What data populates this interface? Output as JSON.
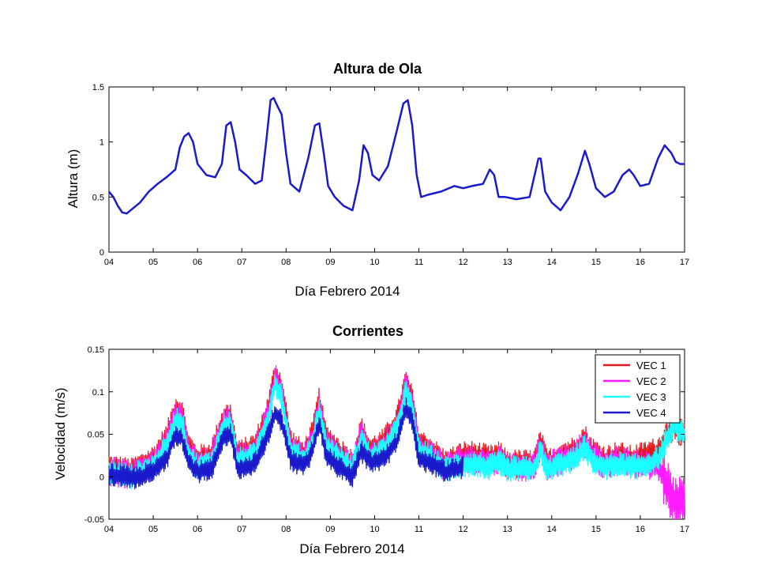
{
  "chart_data": [
    {
      "type": "line",
      "title": "Altura de Ola",
      "xlabel": "Día Febrero 2014",
      "ylabel": "Altura (m)",
      "xlim": [
        4,
        17
      ],
      "ylim": [
        0,
        1.5
      ],
      "xticks": [
        "04",
        "05",
        "06",
        "07",
        "08",
        "09",
        "10",
        "11",
        "12",
        "13",
        "14",
        "15",
        "16",
        "17"
      ],
      "yticks": [
        "0",
        "0.5",
        "1",
        "1.5"
      ],
      "grid": false,
      "color": "#1a1acc",
      "series": [
        {
          "x": [
            4.0,
            4.1,
            4.2,
            4.3,
            4.4,
            4.55,
            4.7,
            4.9,
            5.1,
            5.3,
            5.5,
            5.6,
            5.7,
            5.8,
            5.9,
            6.0,
            6.2,
            6.4,
            6.55,
            6.65,
            6.75,
            6.85,
            6.95,
            7.1,
            7.3,
            7.45,
            7.55,
            7.65,
            7.72,
            7.8,
            7.9,
            8.0,
            8.1,
            8.3,
            8.5,
            8.65,
            8.75,
            8.85,
            8.95,
            9.1,
            9.3,
            9.5,
            9.65,
            9.75,
            9.85,
            9.95,
            10.1,
            10.3,
            10.5,
            10.65,
            10.75,
            10.85,
            10.95,
            11.05,
            11.2,
            11.5,
            11.8,
            12.0,
            12.2,
            12.45,
            12.6,
            12.7,
            12.8,
            12.95,
            13.2,
            13.5,
            13.7,
            13.75,
            13.85,
            14.0,
            14.2,
            14.4,
            14.6,
            14.75,
            14.85,
            15.0,
            15.2,
            15.4,
            15.6,
            15.75,
            15.85,
            16.0,
            16.2,
            16.4,
            16.55,
            16.7,
            16.8,
            16.9,
            17.0
          ],
          "y": [
            0.55,
            0.5,
            0.42,
            0.36,
            0.35,
            0.4,
            0.45,
            0.55,
            0.62,
            0.68,
            0.75,
            0.95,
            1.05,
            1.08,
            1.0,
            0.8,
            0.7,
            0.68,
            0.8,
            1.15,
            1.18,
            1.0,
            0.75,
            0.7,
            0.62,
            0.65,
            1.0,
            1.38,
            1.4,
            1.33,
            1.25,
            0.9,
            0.62,
            0.55,
            0.85,
            1.15,
            1.17,
            0.9,
            0.6,
            0.5,
            0.42,
            0.38,
            0.65,
            0.97,
            0.9,
            0.7,
            0.65,
            0.78,
            1.1,
            1.35,
            1.38,
            1.15,
            0.7,
            0.5,
            0.52,
            0.55,
            0.6,
            0.58,
            0.6,
            0.62,
            0.75,
            0.7,
            0.5,
            0.5,
            0.48,
            0.5,
            0.85,
            0.85,
            0.55,
            0.45,
            0.38,
            0.5,
            0.72,
            0.92,
            0.8,
            0.58,
            0.5,
            0.55,
            0.7,
            0.75,
            0.7,
            0.6,
            0.62,
            0.85,
            0.97,
            0.9,
            0.82,
            0.8,
            0.8
          ]
        }
      ]
    },
    {
      "type": "line",
      "title": "Corrientes",
      "xlabel": "Día Febrero 2014",
      "ylabel": "Velocidad (m/s)",
      "xlim": [
        4,
        17
      ],
      "ylim": [
        -0.05,
        0.15
      ],
      "xticks": [
        "04",
        "05",
        "06",
        "07",
        "08",
        "09",
        "10",
        "11",
        "12",
        "13",
        "14",
        "15",
        "16",
        "17"
      ],
      "yticks": [
        "-0.05",
        "0",
        "0.05",
        "0.1",
        "0.15"
      ],
      "grid": false,
      "legend_position": "top-right",
      "series": [
        {
          "name": "VEC 1",
          "color": "#e31a1c",
          "x": [
            4.0,
            4.5,
            5.0,
            5.3,
            5.5,
            5.65,
            5.8,
            6.0,
            6.3,
            6.6,
            6.75,
            6.9,
            7.1,
            7.3,
            7.6,
            7.75,
            7.9,
            8.1,
            8.4,
            8.6,
            8.75,
            8.9,
            9.2,
            9.5,
            9.7,
            9.9,
            10.2,
            10.5,
            10.7,
            10.85,
            11.0,
            11.3,
            11.6,
            12.0,
            12.3,
            12.6,
            12.8,
            13.0,
            13.3,
            13.6,
            13.75,
            13.9,
            14.2,
            14.5,
            14.75,
            14.9,
            15.2,
            15.5,
            15.8,
            16.1,
            16.4,
            16.6,
            16.75,
            17.0
          ],
          "y": [
            0.015,
            0.01,
            0.025,
            0.05,
            0.085,
            0.08,
            0.04,
            0.025,
            0.03,
            0.075,
            0.075,
            0.03,
            0.035,
            0.04,
            0.085,
            0.125,
            0.11,
            0.045,
            0.03,
            0.055,
            0.095,
            0.05,
            0.035,
            0.02,
            0.06,
            0.035,
            0.045,
            0.07,
            0.115,
            0.095,
            0.045,
            0.035,
            0.02,
            0.03,
            0.03,
            0.025,
            0.03,
            0.02,
            0.02,
            0.02,
            0.045,
            0.02,
            0.03,
            0.035,
            0.05,
            0.035,
            0.025,
            0.03,
            0.025,
            0.03,
            0.035,
            0.055,
            0.065,
            0.055
          ]
        },
        {
          "name": "VEC 2",
          "color": "#ff1aff",
          "x": [
            4.0,
            4.5,
            5.0,
            5.3,
            5.5,
            5.65,
            5.8,
            6.0,
            6.3,
            6.6,
            6.75,
            6.9,
            7.1,
            7.3,
            7.6,
            7.75,
            7.9,
            8.1,
            8.4,
            8.6,
            8.75,
            8.9,
            9.2,
            9.5,
            9.7,
            9.9,
            10.2,
            10.5,
            10.7,
            10.85,
            11.0,
            11.3,
            11.6,
            12.0,
            12.3,
            12.6,
            12.8,
            13.0,
            13.3,
            13.6,
            13.75,
            13.9,
            14.2,
            14.5,
            14.75,
            14.9,
            15.2,
            15.5,
            15.8,
            16.1,
            16.4,
            16.6,
            16.75,
            17.0
          ],
          "y": [
            0.012,
            0.008,
            0.02,
            0.045,
            0.08,
            0.075,
            0.035,
            0.02,
            0.025,
            0.07,
            0.072,
            0.027,
            0.03,
            0.035,
            0.08,
            0.122,
            0.105,
            0.04,
            0.027,
            0.05,
            0.09,
            0.046,
            0.03,
            0.017,
            0.055,
            0.03,
            0.04,
            0.065,
            0.112,
            0.09,
            0.04,
            0.03,
            0.017,
            0.025,
            0.025,
            0.02,
            0.027,
            0.017,
            0.017,
            0.017,
            0.04,
            0.017,
            0.025,
            0.03,
            0.045,
            0.03,
            0.02,
            0.025,
            0.02,
            0.02,
            0.015,
            0.0,
            -0.02,
            -0.02
          ]
        },
        {
          "name": "VEC 3",
          "color": "#1affff",
          "x": [
            4.0,
            4.5,
            5.0,
            5.3,
            5.5,
            5.65,
            5.8,
            6.0,
            6.3,
            6.6,
            6.75,
            6.9,
            7.1,
            7.3,
            7.6,
            7.75,
            7.9,
            8.1,
            8.4,
            8.6,
            8.75,
            8.9,
            9.2,
            9.5,
            9.7,
            9.9,
            10.2,
            10.5,
            10.7,
            10.85,
            11.0,
            11.3,
            11.6,
            12.0,
            12.3,
            12.6,
            12.8,
            13.0,
            13.3,
            13.6,
            13.75,
            13.9,
            14.2,
            14.5,
            14.75,
            14.9,
            15.2,
            15.5,
            15.8,
            16.1,
            16.4,
            16.6,
            16.75,
            17.0
          ],
          "y": [
            0.01,
            0.005,
            0.017,
            0.04,
            0.072,
            0.07,
            0.03,
            0.017,
            0.02,
            0.065,
            0.068,
            0.023,
            0.027,
            0.03,
            0.075,
            0.115,
            0.1,
            0.036,
            0.024,
            0.045,
            0.085,
            0.042,
            0.027,
            0.014,
            0.05,
            0.027,
            0.036,
            0.06,
            0.105,
            0.085,
            0.036,
            0.026,
            0.014,
            0.02,
            0.02,
            0.016,
            0.022,
            0.014,
            0.014,
            0.013,
            0.035,
            0.013,
            0.02,
            0.025,
            0.04,
            0.025,
            0.016,
            0.02,
            0.016,
            0.018,
            0.025,
            0.05,
            0.065,
            0.055
          ]
        },
        {
          "name": "VEC 4",
          "color": "#1a1acc",
          "x": [
            4.0,
            4.5,
            5.0,
            5.3,
            5.5,
            5.65,
            5.8,
            6.0,
            6.3,
            6.6,
            6.75,
            6.9,
            7.1,
            7.3,
            7.6,
            7.75,
            7.9,
            8.1,
            8.4,
            8.6,
            8.75,
            8.9,
            9.2,
            9.5,
            9.7,
            9.9,
            10.2,
            10.5,
            10.7,
            10.85,
            11.0,
            11.3,
            11.6,
            12.0
          ],
          "y": [
            0.008,
            0.002,
            0.01,
            0.025,
            0.055,
            0.05,
            0.02,
            0.01,
            0.012,
            0.05,
            0.055,
            0.015,
            0.015,
            0.02,
            0.055,
            0.08,
            0.07,
            0.025,
            0.015,
            0.035,
            0.07,
            0.03,
            0.015,
            0.005,
            0.035,
            0.02,
            0.025,
            0.045,
            0.085,
            0.07,
            0.025,
            0.02,
            0.01,
            0.015
          ]
        }
      ]
    }
  ]
}
